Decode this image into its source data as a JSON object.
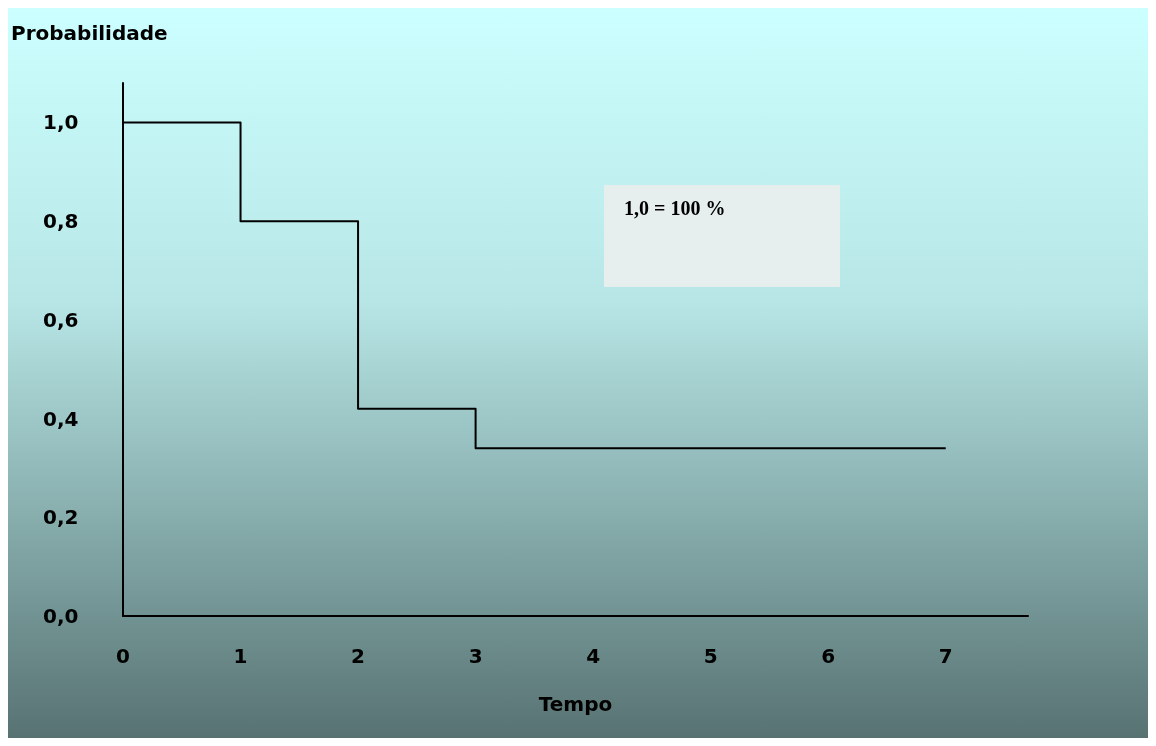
{
  "chart_data": {
    "type": "step",
    "ylabel": "Probabilidade",
    "xlabel": "Tempo",
    "x": [
      0,
      1,
      2,
      3,
      7
    ],
    "series": [
      {
        "color": "#000000",
        "values": [
          1.0,
          0.8,
          0.42,
          0.34,
          0.34
        ]
      }
    ],
    "xlim": [
      0,
      7.7
    ],
    "xticks": [
      0,
      1,
      2,
      3,
      4,
      5,
      6,
      7
    ],
    "ylim": [
      0,
      1.08
    ],
    "yticks": [
      {
        "value": 0,
        "label": "0,0"
      },
      {
        "value": 0.2,
        "label": "0,2"
      },
      {
        "value": 0.4,
        "label": "0,4"
      },
      {
        "value": 0.6,
        "label": "0,6"
      },
      {
        "value": 0.8,
        "label": "0,8"
      },
      {
        "value": 1.0,
        "label": "1,0"
      }
    ],
    "annotations": [
      "1,0 = 100 %"
    ],
    "grid": false,
    "marker": "none",
    "line_style": "solid"
  }
}
